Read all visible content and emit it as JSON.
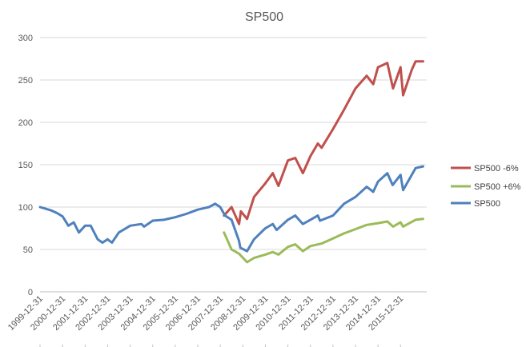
{
  "chart_data": {
    "type": "line",
    "title": "SP500",
    "xlabel": "",
    "ylabel": "",
    "ylim": [
      0,
      300
    ],
    "yticks": [
      "0",
      "50",
      "100",
      "150",
      "200",
      "250",
      "300"
    ],
    "x_tick_labels": [
      "1999-12-31",
      "2000-12-31",
      "2001-12-31",
      "2002-12-31",
      "2003-12-31",
      "2004-12-31",
      "2005-12-31",
      "2006-12-31",
      "2007-12-31",
      "2008-12-31",
      "2009-12-31",
      "2010-12-31",
      "2011-12-31",
      "2012-12-31",
      "2013-12-31",
      "2014-12-31",
      "2015-12-31"
    ],
    "grid": true,
    "legend_position": "right",
    "series": [
      {
        "name": "SP500 -6%",
        "color": "#c0504d",
        "x": [
          "2008-02-29",
          "2008-06-30",
          "2008-10-31",
          "2008-11-30",
          "2009-03-09",
          "2009-06-30",
          "2009-12-31",
          "2010-04-30",
          "2010-07-31",
          "2010-12-31",
          "2011-04-30",
          "2011-08-31",
          "2011-12-31",
          "2012-04-30",
          "2012-06-30",
          "2012-12-31",
          "2013-06-30",
          "2013-12-31",
          "2014-06-30",
          "2014-10-15",
          "2014-12-31",
          "2015-05-31",
          "2015-08-31",
          "2015-12-31",
          "2016-02-11",
          "2016-06-30",
          "2016-08-31",
          "2016-12-31"
        ],
        "y": [
          90,
          100,
          80,
          95,
          86,
          112,
          128,
          140,
          125,
          155,
          158,
          140,
          160,
          175,
          170,
          192,
          215,
          240,
          255,
          245,
          265,
          270,
          240,
          265,
          232,
          262,
          272,
          272
        ]
      },
      {
        "name": "SP500 +6%",
        "color": "#9bbb59",
        "x": [
          "2008-02-29",
          "2008-06-30",
          "2008-10-31",
          "2009-03-09",
          "2009-06-30",
          "2009-12-31",
          "2010-04-30",
          "2010-07-31",
          "2010-12-31",
          "2011-04-30",
          "2011-08-31",
          "2011-12-31",
          "2012-06-30",
          "2012-12-31",
          "2013-06-30",
          "2013-12-31",
          "2014-06-30",
          "2014-12-31",
          "2015-05-31",
          "2015-08-31",
          "2015-12-31",
          "2016-02-11",
          "2016-08-31",
          "2016-12-31"
        ],
        "y": [
          70,
          50,
          45,
          35,
          40,
          44,
          47,
          44,
          53,
          56,
          48,
          54,
          57,
          63,
          69,
          74,
          79,
          81,
          83,
          77,
          82,
          77,
          85,
          86
        ]
      },
      {
        "name": "SP500",
        "color": "#4f81bd",
        "x": [
          "1999-12-31",
          "2000-03-31",
          "2000-06-30",
          "2000-09-30",
          "2000-12-31",
          "2001-04-04",
          "2001-06-30",
          "2001-09-21",
          "2001-12-31",
          "2002-03-31",
          "2002-07-23",
          "2002-10-09",
          "2002-12-31",
          "2003-03-11",
          "2003-06-30",
          "2003-12-31",
          "2004-06-30",
          "2004-08-13",
          "2004-12-31",
          "2005-06-30",
          "2005-12-31",
          "2006-06-30",
          "2006-12-31",
          "2007-06-30",
          "2007-10-09",
          "2007-12-31",
          "2008-03-17",
          "2008-06-30",
          "2008-10-31",
          "2008-11-20",
          "2009-03-09",
          "2009-06-30",
          "2009-12-31",
          "2010-04-30",
          "2010-07-02",
          "2010-12-31",
          "2011-04-30",
          "2011-08-31",
          "2011-12-31",
          "2012-04-30",
          "2012-06-04",
          "2012-12-31",
          "2013-06-30",
          "2013-12-31",
          "2014-06-30",
          "2014-10-15",
          "2014-12-31",
          "2015-05-31",
          "2015-08-25",
          "2015-12-31",
          "2016-02-11",
          "2016-06-30",
          "2016-08-31",
          "2016-12-31"
        ],
        "y": [
          100,
          98,
          96,
          93,
          89,
          78,
          82,
          70,
          78,
          78,
          62,
          58,
          62,
          58,
          70,
          78,
          80,
          77,
          84,
          85,
          88,
          92,
          97,
          100,
          104,
          100,
          90,
          85,
          60,
          52,
          48,
          62,
          75,
          80,
          73,
          85,
          90,
          80,
          85,
          90,
          84,
          90,
          104,
          112,
          124,
          118,
          130,
          140,
          126,
          138,
          120,
          138,
          146,
          148
        ]
      }
    ]
  }
}
